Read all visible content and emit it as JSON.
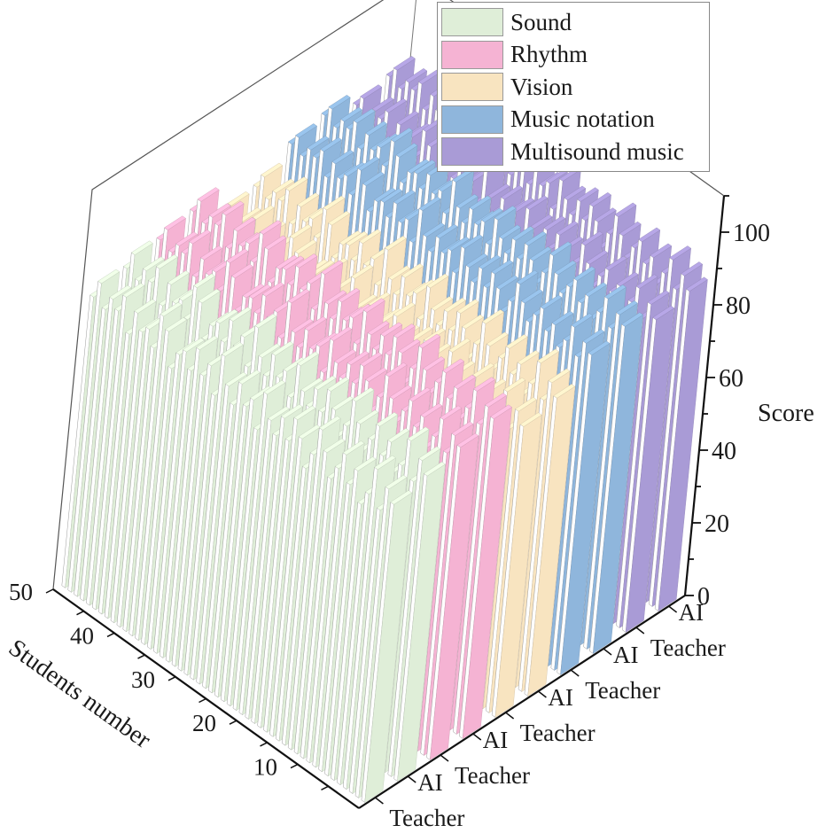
{
  "chart_data": {
    "type": "bar",
    "subtype": "3d-bar",
    "title": "",
    "xlabel": "Students number",
    "ylabel": "",
    "zlabel": "Score",
    "x_ticks": [
      "10",
      "20",
      "30",
      "40",
      "50"
    ],
    "z_ticks": [
      "0",
      "20",
      "40",
      "60",
      "80",
      "100"
    ],
    "zlim": [
      0,
      110
    ],
    "xlim": [
      0,
      50
    ],
    "categories": [
      "Teacher",
      "AI",
      "Teacher",
      "AI",
      "Teacher",
      "AI",
      "Teacher",
      "AI",
      "Teacher",
      "AI"
    ],
    "legend_position": "top-right",
    "series": [
      {
        "name": "Sound",
        "color": "#dfeed8",
        "groups": [
          "Teacher",
          "AI"
        ],
        "teacher": [
          82,
          85,
          78,
          88,
          80,
          76,
          84,
          79,
          86,
          81,
          77,
          83,
          88,
          80,
          75,
          82,
          86,
          79,
          84,
          78,
          81,
          87,
          76,
          83,
          80,
          85,
          78,
          82,
          89,
          77,
          84,
          80,
          86,
          79,
          83,
          81,
          76,
          85,
          88,
          78,
          82,
          80,
          84,
          77,
          86,
          81,
          83,
          79,
          85,
          80
        ],
        "ai": [
          84,
          87,
          80,
          90,
          82,
          79,
          86,
          81,
          88,
          83,
          79,
          85,
          90,
          82,
          78,
          84,
          88,
          81,
          86,
          80,
          83,
          89,
          79,
          85,
          82,
          87,
          80,
          84,
          91,
          79,
          86,
          82,
          88,
          81,
          85,
          83,
          78,
          87,
          90,
          80,
          84,
          82,
          86,
          79,
          88,
          83,
          85,
          81,
          87,
          82
        ]
      },
      {
        "name": "Rhythm",
        "color": "#f5b3d3",
        "groups": [
          "Teacher",
          "AI"
        ],
        "teacher": [
          86,
          88,
          82,
          90,
          84,
          80,
          87,
          83,
          89,
          85,
          81,
          86,
          91,
          84,
          79,
          86,
          89,
          83,
          87,
          82,
          85,
          90,
          80,
          86,
          84,
          88,
          82,
          85,
          92,
          81,
          87,
          84,
          89,
          83,
          86,
          85,
          80,
          88,
          91,
          82,
          86,
          84,
          87,
          81,
          89,
          85,
          86,
          83,
          88,
          84
        ],
        "ai": [
          88,
          90,
          84,
          92,
          86,
          82,
          89,
          85,
          91,
          87,
          83,
          88,
          93,
          86,
          81,
          88,
          91,
          85,
          89,
          84,
          87,
          92,
          82,
          88,
          86,
          90,
          84,
          87,
          94,
          83,
          89,
          86,
          91,
          85,
          88,
          87,
          82,
          90,
          93,
          84,
          88,
          86,
          89,
          83,
          91,
          87,
          88,
          85,
          90,
          86
        ]
      },
      {
        "name": "Vision",
        "color": "#f8e4c0",
        "groups": [
          "Teacher",
          "AI"
        ],
        "teacher": [
          80,
          83,
          77,
          86,
          79,
          75,
          82,
          78,
          84,
          80,
          76,
          81,
          86,
          79,
          74,
          81,
          84,
          78,
          82,
          77,
          80,
          85,
          75,
          81,
          79,
          83,
          77,
          80,
          87,
          76,
          82,
          79,
          84,
          78,
          81,
          80,
          75,
          83,
          86,
          77,
          81,
          79,
          82,
          76,
          84,
          80,
          81,
          78,
          83,
          79
        ],
        "ai": [
          82,
          85,
          79,
          88,
          81,
          77,
          84,
          80,
          86,
          82,
          78,
          83,
          88,
          81,
          76,
          83,
          86,
          80,
          84,
          79,
          82,
          87,
          77,
          83,
          81,
          85,
          79,
          82,
          89,
          78,
          84,
          81,
          86,
          80,
          83,
          82,
          77,
          85,
          88,
          79,
          83,
          81,
          84,
          78,
          86,
          82,
          83,
          80,
          85,
          81
        ]
      },
      {
        "name": "Music notation",
        "color": "#8fb6dc",
        "groups": [
          "Teacher",
          "AI"
        ],
        "teacher": [
          88,
          90,
          85,
          92,
          87,
          84,
          89,
          86,
          91,
          88,
          85,
          89,
          93,
          87,
          83,
          88,
          91,
          86,
          90,
          85,
          88,
          92,
          84,
          89,
          87,
          90,
          85,
          88,
          94,
          84,
          89,
          87,
          91,
          86,
          89,
          88,
          84,
          90,
          93,
          85,
          89,
          87,
          90,
          85,
          91,
          88,
          89,
          86,
          90,
          87
        ],
        "ai": [
          90,
          92,
          87,
          94,
          89,
          86,
          91,
          88,
          93,
          90,
          87,
          91,
          95,
          89,
          85,
          90,
          93,
          88,
          92,
          87,
          90,
          94,
          86,
          91,
          89,
          92,
          87,
          90,
          96,
          86,
          91,
          89,
          93,
          88,
          91,
          90,
          86,
          92,
          95,
          87,
          91,
          89,
          92,
          87,
          93,
          90,
          91,
          88,
          92,
          89
        ]
      },
      {
        "name": "Multisound music",
        "color": "#a99bd6",
        "groups": [
          "Teacher",
          "AI"
        ],
        "teacher": [
          86,
          89,
          84,
          91,
          86,
          82,
          88,
          85,
          90,
          87,
          83,
          88,
          92,
          86,
          81,
          87,
          90,
          85,
          89,
          84,
          87,
          91,
          82,
          88,
          86,
          89,
          84,
          87,
          93,
          83,
          88,
          86,
          90,
          85,
          88,
          87,
          82,
          89,
          92,
          84,
          88,
          86,
          89,
          84,
          90,
          87,
          88,
          85,
          89,
          86
        ],
        "ai": [
          88,
          91,
          86,
          93,
          88,
          84,
          90,
          87,
          92,
          89,
          85,
          90,
          94,
          88,
          83,
          89,
          92,
          87,
          91,
          86,
          89,
          93,
          84,
          90,
          88,
          91,
          86,
          89,
          95,
          85,
          90,
          88,
          92,
          87,
          90,
          89,
          84,
          91,
          94,
          86,
          90,
          88,
          91,
          86,
          92,
          89,
          90,
          87,
          91,
          88
        ]
      }
    ]
  },
  "legend": {
    "items": [
      {
        "label": "Sound",
        "color": "#dfeed8"
      },
      {
        "label": "Rhythm",
        "color": "#f5b3d3"
      },
      {
        "label": "Vision",
        "color": "#f8e4c0"
      },
      {
        "label": "Music notation",
        "color": "#8fb6dc"
      },
      {
        "label": "Multisound music",
        "color": "#a99bd6"
      }
    ]
  },
  "axes": {
    "z_label": "Score",
    "x_label": "Students number",
    "category_labels": [
      "Teacher",
      "AI",
      "Teacher",
      "AI",
      "Teacher",
      "AI",
      "Teacher",
      "AI",
      "Teacher",
      "AI"
    ]
  }
}
